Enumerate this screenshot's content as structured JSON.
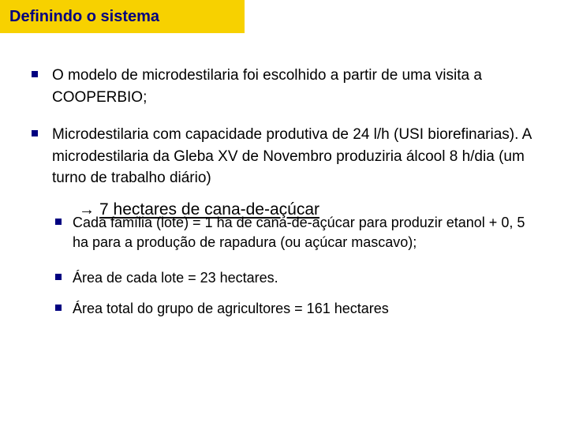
{
  "title": "Definindo o sistema",
  "bullets_a": [
    "O modelo de microdestilaria foi escolhido a partir de uma visita a COOPERBIO;",
    "Microdestilaria com capacidade produtiva de 24 l/h (USI biorefinarias). A microdestilaria da Gleba XV de Novembro produziria álcool 8 h/dia (um turno de trabalho diário)"
  ],
  "arrow_text": "7 hectares de cana-de-açúcar",
  "bullets_b": [
    "Cada família (lote) = 1 ha de cana-de-açúcar para produzir etanol + 0, 5 ha para a produção de rapadura (ou açúcar mascavo);",
    "Área de cada lote = 23 hectares.",
    "Área total do grupo de agricultores =  161 hectares"
  ],
  "colors": {
    "title_bg": "#f7d100",
    "title_text": "#000080",
    "bullet": "#000080",
    "body_text": "#000000",
    "background": "#ffffff"
  }
}
